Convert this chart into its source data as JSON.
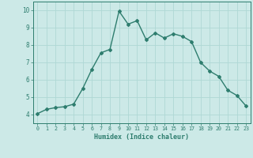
{
  "x": [
    0,
    1,
    2,
    3,
    4,
    5,
    6,
    7,
    8,
    9,
    10,
    11,
    12,
    13,
    14,
    15,
    16,
    17,
    18,
    19,
    20,
    21,
    22,
    23
  ],
  "y": [
    4.05,
    4.3,
    4.4,
    4.45,
    4.6,
    5.5,
    6.6,
    7.55,
    7.75,
    9.95,
    9.2,
    9.4,
    8.3,
    8.7,
    8.4,
    8.65,
    8.5,
    8.2,
    7.0,
    6.5,
    6.2,
    5.4,
    5.1,
    4.5
  ],
  "line_color": "#2e7d6e",
  "bg_color": "#cce9e7",
  "grid_color": "#afd8d5",
  "xlabel": "Humidex (Indice chaleur)",
  "ylim": [
    3.5,
    10.5
  ],
  "xlim": [
    -0.5,
    23.5
  ],
  "yticks": [
    4,
    5,
    6,
    7,
    8,
    9,
    10
  ],
  "xticks": [
    0,
    1,
    2,
    3,
    4,
    5,
    6,
    7,
    8,
    9,
    10,
    11,
    12,
    13,
    14,
    15,
    16,
    17,
    18,
    19,
    20,
    21,
    22,
    23
  ],
  "tick_color": "#2e7d6e",
  "xlabel_color": "#2e7d6e",
  "marker": "D",
  "marker_size": 2.0,
  "line_width": 1.0
}
